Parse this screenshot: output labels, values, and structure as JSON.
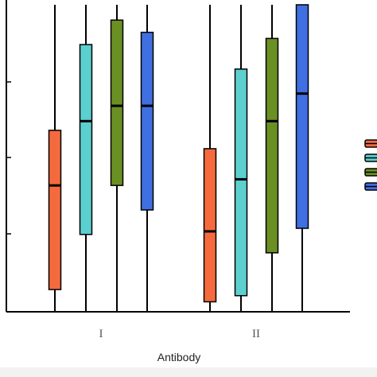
{
  "chart_data": {
    "type": "box",
    "title": "",
    "xlabel": "Antibody",
    "ylabel": "",
    "ylim": [
      0,
      100
    ],
    "categories": [
      "I",
      "II"
    ],
    "grid": false,
    "legend": "right",
    "series": [
      {
        "color": "#f46a3e",
        "boxes": [
          {
            "min": 0,
            "q1": 7,
            "median": 41,
            "q3": 59,
            "max": 100
          },
          {
            "min": 0,
            "q1": 3,
            "median": 26,
            "q3": 53,
            "max": 100
          }
        ]
      },
      {
        "color": "#5ccfcf",
        "boxes": [
          {
            "min": 0,
            "q1": 25,
            "median": 62,
            "q3": 87,
            "max": 100
          },
          {
            "min": 0,
            "q1": 5,
            "median": 43,
            "q3": 79,
            "max": 100
          }
        ]
      },
      {
        "color": "#6a8f22",
        "boxes": [
          {
            "min": 0,
            "q1": 41,
            "median": 67,
            "q3": 95,
            "max": 100
          },
          {
            "min": 0,
            "q1": 19,
            "median": 62,
            "q3": 89,
            "max": 100
          }
        ]
      },
      {
        "color": "#3f6fe0",
        "boxes": [
          {
            "min": 0,
            "q1": 33,
            "median": 67,
            "q3": 91,
            "max": 100
          },
          {
            "min": 0,
            "q1": 27,
            "median": 71,
            "q3": 100,
            "max": 100
          }
        ]
      }
    ]
  }
}
